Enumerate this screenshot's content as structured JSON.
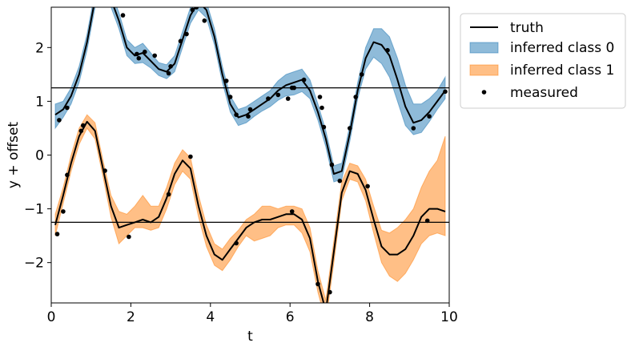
{
  "chart_data": {
    "type": "line",
    "title": "",
    "xlabel": "t",
    "ylabel": "y + offset",
    "xlim": [
      0,
      10
    ],
    "ylim": [
      -2.75,
      2.75
    ],
    "xticks": [
      0,
      2,
      4,
      6,
      8,
      10
    ],
    "xtick_labels": [
      "0",
      "2",
      "4",
      "6",
      "8",
      "10"
    ],
    "yticks": [
      -2,
      -1,
      0,
      1,
      2
    ],
    "ytick_labels": [
      "−2",
      "−1",
      "0",
      "1",
      "2"
    ],
    "hlines": [
      1.25,
      -1.25
    ],
    "grid": false,
    "legend_position": "outside-right-top",
    "legend": [
      {
        "label": "truth",
        "kind": "line",
        "color": "#000000"
      },
      {
        "label": "inferred class 0",
        "kind": "patch",
        "color": "#1f77b4"
      },
      {
        "label": "inferred class 1",
        "kind": "patch",
        "color": "#ff7f0e"
      },
      {
        "label": "measured",
        "kind": "marker",
        "color": "#000000"
      }
    ],
    "series": [
      {
        "name": "truth",
        "x": [
          0.1,
          0.3,
          0.5,
          0.7,
          0.9,
          1.1,
          1.3,
          1.5,
          1.7,
          1.9,
          2.1,
          2.3,
          2.5,
          2.7,
          2.9,
          3.1,
          3.3,
          3.5,
          3.7,
          3.9,
          4.1,
          4.3,
          4.5,
          4.7,
          4.9,
          5.1,
          5.3,
          5.5,
          5.7,
          5.9,
          6.1,
          6.3,
          6.5,
          6.7,
          6.9,
          7.1,
          7.3,
          7.5,
          7.7,
          7.9,
          8.1,
          8.3,
          8.5,
          8.7,
          8.9,
          9.1,
          9.3,
          9.5,
          9.7,
          9.9
        ],
        "y": [
          0.75,
          0.85,
          1.1,
          1.5,
          2.1,
          2.9,
          3.1,
          2.9,
          2.5,
          2.0,
          1.85,
          1.9,
          1.75,
          1.6,
          1.55,
          1.7,
          2.15,
          2.6,
          2.85,
          2.7,
          2.2,
          1.5,
          0.95,
          0.7,
          0.75,
          0.85,
          0.95,
          1.05,
          1.2,
          1.3,
          1.35,
          1.4,
          1.2,
          0.8,
          0.3,
          -0.35,
          -0.3,
          0.4,
          1.2,
          1.8,
          2.1,
          2.05,
          1.85,
          1.4,
          0.9,
          0.6,
          0.65,
          0.8,
          1.0,
          1.2
        ]
      },
      {
        "name": "",
        "x": [
          0.1,
          0.3,
          0.5,
          0.7,
          0.9,
          1.1,
          1.3,
          1.5,
          1.7,
          1.9,
          2.1,
          2.3,
          2.5,
          2.7,
          2.9,
          3.1,
          3.3,
          3.5,
          3.7,
          3.9,
          4.1,
          4.3,
          4.5,
          4.7,
          4.9,
          5.1,
          5.3,
          5.5,
          5.7,
          5.9,
          6.1,
          6.3,
          6.5,
          6.7,
          6.9,
          7.1,
          7.3,
          7.5,
          7.7,
          7.9,
          8.1,
          8.3,
          8.5,
          8.7,
          8.9,
          9.1,
          9.3,
          9.5,
          9.7,
          9.9
        ],
        "y": [
          -1.3,
          -0.75,
          -0.15,
          0.35,
          0.62,
          0.45,
          -0.25,
          -0.95,
          -1.35,
          -1.3,
          -1.25,
          -1.2,
          -1.25,
          -1.15,
          -0.8,
          -0.35,
          -0.1,
          -0.25,
          -0.95,
          -1.5,
          -1.85,
          -1.95,
          -1.75,
          -1.55,
          -1.35,
          -1.25,
          -1.2,
          -1.2,
          -1.15,
          -1.1,
          -1.1,
          -1.2,
          -1.55,
          -2.35,
          -2.9,
          -1.8,
          -0.7,
          -0.3,
          -0.35,
          -0.65,
          -1.2,
          -1.7,
          -1.85,
          -1.85,
          -1.75,
          -1.5,
          -1.15,
          -1.0,
          -1.0,
          -1.05
        ]
      }
    ],
    "bands": [
      {
        "name": "inferred class 0",
        "color": "#1f77b4",
        "x": [
          0.1,
          0.3,
          0.5,
          0.7,
          0.9,
          1.1,
          1.3,
          1.5,
          1.7,
          1.9,
          2.1,
          2.3,
          2.5,
          2.7,
          2.9,
          3.1,
          3.3,
          3.5,
          3.7,
          3.9,
          4.1,
          4.3,
          4.5,
          4.7,
          4.9,
          5.1,
          5.3,
          5.5,
          5.7,
          5.9,
          6.1,
          6.3,
          6.5,
          6.7,
          6.9,
          7.1,
          7.3,
          7.5,
          7.7,
          7.9,
          8.1,
          8.3,
          8.5,
          8.7,
          8.9,
          9.1,
          9.3,
          9.5,
          9.7,
          9.9
        ],
        "lower": [
          0.5,
          0.7,
          0.95,
          1.35,
          1.95,
          2.75,
          2.95,
          2.75,
          2.35,
          1.85,
          1.7,
          1.72,
          1.62,
          1.48,
          1.42,
          1.55,
          2.0,
          2.45,
          2.7,
          2.55,
          2.05,
          1.35,
          0.8,
          0.55,
          0.6,
          0.72,
          0.82,
          0.9,
          1.02,
          1.1,
          1.12,
          1.18,
          1.05,
          0.65,
          0.15,
          -0.5,
          -0.45,
          0.25,
          1.05,
          1.6,
          1.82,
          1.7,
          1.45,
          1.0,
          0.55,
          0.38,
          0.42,
          0.62,
          0.85,
          1.05
        ],
        "upper": [
          0.95,
          1.0,
          1.25,
          1.65,
          2.25,
          3.05,
          3.25,
          3.05,
          2.65,
          2.15,
          2.0,
          2.08,
          1.9,
          1.72,
          1.68,
          1.85,
          2.3,
          2.75,
          3.0,
          2.85,
          2.35,
          1.65,
          1.1,
          0.85,
          0.9,
          1.0,
          1.1,
          1.2,
          1.38,
          1.5,
          1.55,
          1.6,
          1.4,
          0.95,
          0.45,
          -0.2,
          -0.15,
          0.55,
          1.35,
          2.0,
          2.35,
          2.35,
          2.2,
          1.8,
          1.3,
          0.95,
          0.95,
          1.05,
          1.2,
          1.45
        ]
      },
      {
        "name": "inferred class 1",
        "color": "#ff7f0e",
        "x": [
          0.1,
          0.3,
          0.5,
          0.7,
          0.9,
          1.1,
          1.3,
          1.5,
          1.7,
          1.9,
          2.1,
          2.3,
          2.5,
          2.7,
          2.9,
          3.1,
          3.3,
          3.5,
          3.7,
          3.9,
          4.1,
          4.3,
          4.5,
          4.7,
          4.9,
          5.1,
          5.3,
          5.5,
          5.7,
          5.9,
          6.1,
          6.3,
          6.5,
          6.7,
          6.9,
          7.1,
          7.3,
          7.5,
          7.7,
          7.9,
          8.1,
          8.3,
          8.5,
          8.7,
          8.9,
          9.1,
          9.3,
          9.5,
          9.7,
          9.9
        ],
        "lower": [
          -1.5,
          -0.9,
          -0.3,
          0.2,
          0.5,
          0.3,
          -0.4,
          -1.15,
          -1.65,
          -1.5,
          -1.35,
          -1.35,
          -1.4,
          -1.35,
          -1.0,
          -0.55,
          -0.3,
          -0.45,
          -1.15,
          -1.7,
          -2.05,
          -2.15,
          -1.95,
          -1.7,
          -1.5,
          -1.6,
          -1.55,
          -1.5,
          -1.35,
          -1.3,
          -1.3,
          -1.45,
          -1.8,
          -2.55,
          -3.1,
          -2.0,
          -0.85,
          -0.45,
          -0.5,
          -0.85,
          -1.45,
          -2.0,
          -2.25,
          -2.35,
          -2.2,
          -1.95,
          -1.65,
          -1.5,
          -1.45,
          -1.5
        ],
        "upper": [
          -1.1,
          -0.6,
          0.0,
          0.5,
          0.75,
          0.6,
          -0.1,
          -0.75,
          -1.05,
          -1.1,
          -0.95,
          -0.75,
          -0.95,
          -0.95,
          -0.6,
          -0.15,
          0.1,
          -0.05,
          -0.75,
          -1.3,
          -1.65,
          -1.75,
          -1.55,
          -1.4,
          -1.2,
          -1.1,
          -0.95,
          -0.95,
          -1.0,
          -0.95,
          -0.95,
          -1.0,
          -1.35,
          -2.15,
          -2.7,
          -1.6,
          -0.5,
          -0.15,
          -0.2,
          -0.45,
          -0.95,
          -1.4,
          -1.45,
          -1.35,
          -1.2,
          -1.0,
          -0.6,
          -0.3,
          -0.1,
          0.35
        ]
      }
    ],
    "measured": {
      "x": [
        0.2,
        0.4,
        0.8,
        1.8,
        2.15,
        2.2,
        2.35,
        2.6,
        2.95,
        3.0,
        3.25,
        3.4,
        3.55,
        3.65,
        3.85,
        4.4,
        4.5,
        4.65,
        4.95,
        5.0,
        5.45,
        5.7,
        5.95,
        6.05,
        6.1,
        6.35,
        6.75,
        6.8,
        6.85,
        7.05,
        7.25,
        7.5,
        7.65,
        7.8,
        8.45,
        9.1,
        9.5,
        9.9,
        0.15,
        0.3,
        0.4,
        0.75,
        1.35,
        1.95,
        2.95,
        3.5,
        4.65,
        6.05,
        6.7,
        7.0,
        7.95,
        9.45
      ],
      "y": [
        0.65,
        0.88,
        0.55,
        2.6,
        1.88,
        1.8,
        1.92,
        1.85,
        1.52,
        1.65,
        2.12,
        2.25,
        2.7,
        2.75,
        2.5,
        1.38,
        1.08,
        0.75,
        0.72,
        0.85,
        1.05,
        1.12,
        1.05,
        1.25,
        1.25,
        1.4,
        1.08,
        0.88,
        0.52,
        -0.18,
        -0.48,
        0.5,
        1.08,
        1.5,
        1.95,
        0.5,
        0.72,
        1.18,
        -1.47,
        -1.05,
        -0.37,
        0.45,
        -0.29,
        -1.52,
        -0.73,
        -0.03,
        -1.64,
        -1.05,
        -2.4,
        -2.55,
        -0.58,
        -1.22
      ]
    }
  }
}
